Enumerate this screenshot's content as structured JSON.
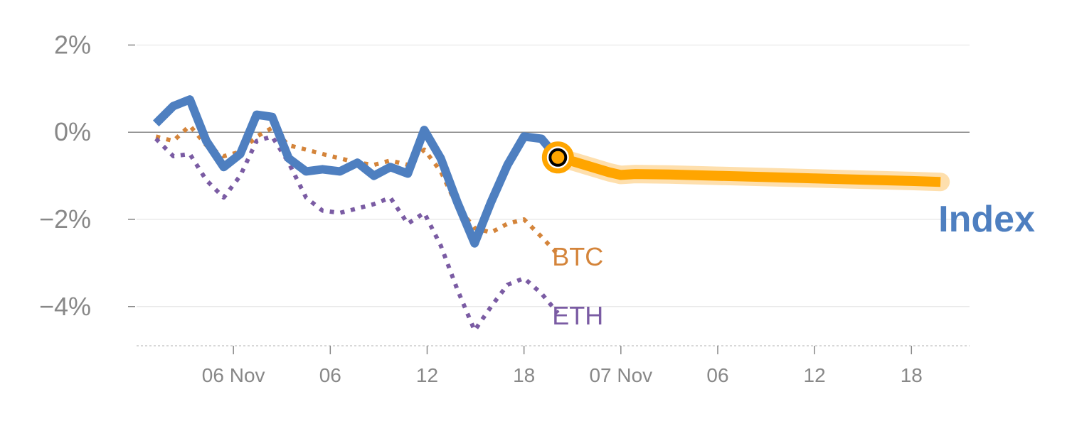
{
  "chart_data": {
    "type": "line",
    "y_unit": "%",
    "ylim": [
      -4.9,
      2.3
    ],
    "yticks": [
      {
        "value": 2,
        "label": "2%"
      },
      {
        "value": 0,
        "label": "0%"
      },
      {
        "value": -2,
        "label": "−2%"
      },
      {
        "value": -4,
        "label": "−4%"
      }
    ],
    "xlim": [
      0,
      86
    ],
    "xticks": [
      {
        "value": 10,
        "label": "06 Nov"
      },
      {
        "value": 20,
        "label": "06"
      },
      {
        "value": 30,
        "label": "12"
      },
      {
        "value": 40,
        "label": "18"
      },
      {
        "value": 50,
        "label": "07 Nov"
      },
      {
        "value": 60,
        "label": "06"
      },
      {
        "value": 70,
        "label": "12"
      },
      {
        "value": 80,
        "label": "18"
      }
    ],
    "grid": true,
    "series": [
      {
        "name": "Index",
        "color": "#4e7fc0",
        "style": "solid",
        "points": [
          [
            2.0,
            0.2
          ],
          [
            3.8,
            0.6
          ],
          [
            5.5,
            0.75
          ],
          [
            7.2,
            -0.2
          ],
          [
            9.0,
            -0.8
          ],
          [
            10.7,
            -0.5
          ],
          [
            12.4,
            0.4
          ],
          [
            14.0,
            0.35
          ],
          [
            15.7,
            -0.6
          ],
          [
            17.5,
            -0.9
          ],
          [
            19.2,
            -0.85
          ],
          [
            21.0,
            -0.9
          ],
          [
            22.8,
            -0.7
          ],
          [
            24.5,
            -1.0
          ],
          [
            26.2,
            -0.8
          ],
          [
            28.0,
            -0.95
          ],
          [
            29.7,
            0.05
          ],
          [
            31.4,
            -0.6
          ],
          [
            33.1,
            -1.6
          ],
          [
            34.9,
            -2.55
          ],
          [
            36.6,
            -1.6
          ],
          [
            38.3,
            -0.75
          ],
          [
            40.0,
            -0.1
          ],
          [
            41.8,
            -0.15
          ],
          [
            43.5,
            -0.6
          ]
        ]
      },
      {
        "name": "BTC",
        "color": "#d4843a",
        "style": "dotted",
        "points": [
          [
            2.0,
            -0.1
          ],
          [
            3.8,
            -0.2
          ],
          [
            5.5,
            0.15
          ],
          [
            7.2,
            -0.3
          ],
          [
            9.0,
            -0.55
          ],
          [
            10.7,
            -0.45
          ],
          [
            12.4,
            -0.1
          ],
          [
            14.0,
            0.1
          ],
          [
            15.7,
            -0.3
          ],
          [
            17.5,
            -0.4
          ],
          [
            19.2,
            -0.5
          ],
          [
            21.0,
            -0.6
          ],
          [
            22.8,
            -0.7
          ],
          [
            24.5,
            -0.75
          ],
          [
            26.2,
            -0.65
          ],
          [
            28.0,
            -0.75
          ],
          [
            29.7,
            -0.4
          ],
          [
            31.4,
            -0.9
          ],
          [
            33.1,
            -1.7
          ],
          [
            34.9,
            -2.2
          ],
          [
            36.6,
            -2.3
          ],
          [
            38.3,
            -2.1
          ],
          [
            40.0,
            -2.0
          ],
          [
            41.8,
            -2.4
          ],
          [
            43.5,
            -2.8
          ]
        ]
      },
      {
        "name": "ETH",
        "color": "#7a5ba3",
        "style": "dotted",
        "points": [
          [
            2.0,
            -0.15
          ],
          [
            3.8,
            -0.55
          ],
          [
            5.5,
            -0.5
          ],
          [
            7.2,
            -1.1
          ],
          [
            9.0,
            -1.5
          ],
          [
            10.7,
            -1.0
          ],
          [
            12.4,
            -0.2
          ],
          [
            14.0,
            -0.1
          ],
          [
            15.7,
            -0.7
          ],
          [
            17.5,
            -1.5
          ],
          [
            19.2,
            -1.8
          ],
          [
            21.0,
            -1.85
          ],
          [
            22.8,
            -1.75
          ],
          [
            24.5,
            -1.65
          ],
          [
            26.2,
            -1.5
          ],
          [
            28.0,
            -2.1
          ],
          [
            29.7,
            -1.85
          ],
          [
            31.4,
            -2.6
          ],
          [
            33.1,
            -3.6
          ],
          [
            34.9,
            -4.55
          ],
          [
            36.6,
            -4.0
          ],
          [
            38.3,
            -3.5
          ],
          [
            40.0,
            -3.35
          ],
          [
            41.8,
            -3.7
          ],
          [
            43.5,
            -4.15
          ]
        ]
      },
      {
        "name": "Index",
        "role": "forecast",
        "color": "#ffa500",
        "band_color": "#fdd28a",
        "points": [
          [
            43.5,
            -0.58
          ],
          [
            45.2,
            -0.68
          ],
          [
            47.0,
            -0.8
          ],
          [
            48.8,
            -0.92
          ],
          [
            50.0,
            -0.98
          ],
          [
            51.5,
            -0.96
          ],
          [
            55.0,
            -0.97
          ],
          [
            60.0,
            -1.0
          ],
          [
            65.0,
            -1.03
          ],
          [
            70.0,
            -1.06
          ],
          [
            75.0,
            -1.09
          ],
          [
            80.0,
            -1.12
          ],
          [
            83.0,
            -1.14
          ]
        ]
      }
    ],
    "marker": {
      "x": 43.5,
      "y": -0.58,
      "fill": "#ffa500",
      "stroke": "#000000"
    },
    "labels": [
      {
        "text": "Index",
        "series": "Index",
        "color": "#4e7fc0"
      },
      {
        "text": "BTC",
        "series": "BTC",
        "color": "#d4843a"
      },
      {
        "text": "ETH",
        "series": "ETH",
        "color": "#7a5ba3"
      }
    ]
  }
}
